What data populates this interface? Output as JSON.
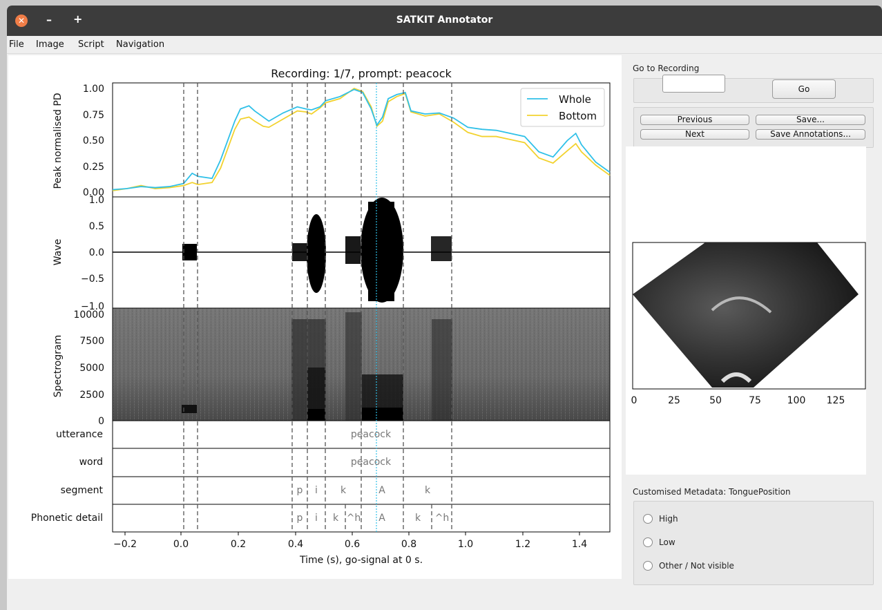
{
  "window": {
    "title": "SATKIT Annotator",
    "close_icon": "close-icon",
    "minimize_icon": "minimize-icon",
    "maximize_icon": "maximize-icon"
  },
  "menu": [
    "File",
    "Image",
    "Script",
    "Navigation"
  ],
  "plot": {
    "title": "Recording: 1/7, prompt: peacock",
    "xlabel": "Time (s), go-signal at 0 s.",
    "x_ticks": [
      "−0.2",
      "0.0",
      "0.2",
      "0.4",
      "0.6",
      "0.8",
      "1.0",
      "1.2",
      "1.4"
    ],
    "pd": {
      "ylabel": "Peak normalised PD",
      "y_ticks": [
        "0.00",
        "0.25",
        "0.50",
        "0.75",
        "1.00"
      ],
      "legend": [
        {
          "label": "Whole",
          "color": "#2fc0e8"
        },
        {
          "label": "Bottom",
          "color": "#f2d22e"
        }
      ]
    },
    "wave": {
      "ylabel": "Wave",
      "y_ticks": [
        "−1.0",
        "−0.5",
        "0.0",
        "0.5",
        "1.0"
      ]
    },
    "spectrogram": {
      "ylabel": "Spectrogram",
      "y_ticks": [
        "0",
        "2500",
        "5000",
        "7500",
        "10000"
      ]
    },
    "tiers": [
      {
        "name": "utterance",
        "labels": [
          "peacock"
        ]
      },
      {
        "name": "word",
        "labels": [
          "peacock"
        ]
      },
      {
        "name": "segment",
        "labels": [
          "p",
          "i",
          "k",
          "A",
          "k"
        ]
      },
      {
        "name": "Phonetic detail",
        "labels": [
          "p",
          "i",
          "k",
          "^h",
          "A",
          "k",
          "^h"
        ]
      }
    ]
  },
  "chart_data": {
    "type": "line",
    "title": "Recording: 1/7, prompt: peacock",
    "xlabel": "Time (s), go-signal at 0 s.",
    "ylabel": "Peak normalised PD",
    "xlim": [
      -0.25,
      1.5
    ],
    "ylim": [
      0,
      1.03
    ],
    "legend_position": "top-right",
    "series": [
      {
        "name": "Whole",
        "color": "#2fc0e8",
        "x": [
          -0.25,
          -0.2,
          -0.15,
          -0.1,
          -0.05,
          0.0,
          0.03,
          0.05,
          0.1,
          0.13,
          0.18,
          0.2,
          0.23,
          0.25,
          0.28,
          0.3,
          0.35,
          0.4,
          0.43,
          0.45,
          0.48,
          0.5,
          0.55,
          0.6,
          0.63,
          0.66,
          0.68,
          0.7,
          0.72,
          0.75,
          0.78,
          0.8,
          0.85,
          0.9,
          0.95,
          1.0,
          1.05,
          1.1,
          1.15,
          1.2,
          1.25,
          1.3,
          1.35,
          1.38,
          1.4,
          1.45,
          1.5
        ],
        "y": [
          0.01,
          0.02,
          0.04,
          0.03,
          0.04,
          0.07,
          0.17,
          0.14,
          0.12,
          0.3,
          0.68,
          0.8,
          0.83,
          0.78,
          0.72,
          0.68,
          0.76,
          0.82,
          0.8,
          0.79,
          0.82,
          0.88,
          0.92,
          0.99,
          0.96,
          0.8,
          0.64,
          0.72,
          0.9,
          0.94,
          0.96,
          0.78,
          0.75,
          0.76,
          0.71,
          0.62,
          0.6,
          0.59,
          0.56,
          0.53,
          0.38,
          0.33,
          0.49,
          0.56,
          0.45,
          0.28,
          0.18
        ]
      },
      {
        "name": "Bottom",
        "color": "#f2d22e",
        "x": [
          -0.25,
          -0.2,
          -0.15,
          -0.1,
          -0.05,
          0.0,
          0.03,
          0.05,
          0.1,
          0.13,
          0.18,
          0.2,
          0.23,
          0.25,
          0.28,
          0.3,
          0.35,
          0.4,
          0.43,
          0.45,
          0.48,
          0.5,
          0.55,
          0.6,
          0.63,
          0.66,
          0.68,
          0.7,
          0.72,
          0.75,
          0.78,
          0.8,
          0.85,
          0.9,
          0.95,
          1.0,
          1.05,
          1.1,
          1.15,
          1.2,
          1.25,
          1.3,
          1.35,
          1.38,
          1.4,
          1.45,
          1.5
        ],
        "y": [
          0.0,
          0.02,
          0.05,
          0.02,
          0.03,
          0.05,
          0.08,
          0.06,
          0.08,
          0.22,
          0.6,
          0.7,
          0.72,
          0.68,
          0.63,
          0.62,
          0.7,
          0.78,
          0.77,
          0.75,
          0.81,
          0.86,
          0.9,
          1.0,
          0.97,
          0.82,
          0.63,
          0.68,
          0.87,
          0.92,
          0.95,
          0.77,
          0.73,
          0.75,
          0.67,
          0.57,
          0.53,
          0.53,
          0.5,
          0.47,
          0.32,
          0.27,
          0.39,
          0.46,
          0.38,
          0.25,
          0.15
        ]
      }
    ]
  },
  "sidebar": {
    "goto_label": "Go to Recording",
    "goto_value": "",
    "go_button": "Go",
    "previous_button": "Previous",
    "next_button": "Next",
    "save_button": "Save...",
    "save_annotations_button": "Save Annotations...",
    "image_ticks": [
      "0",
      "25",
      "50",
      "75",
      "100",
      "125"
    ],
    "metadata_label": "Customised Metadata: TonguePosition",
    "radio_options": [
      "High",
      "Low",
      "Other / Not visible"
    ]
  }
}
